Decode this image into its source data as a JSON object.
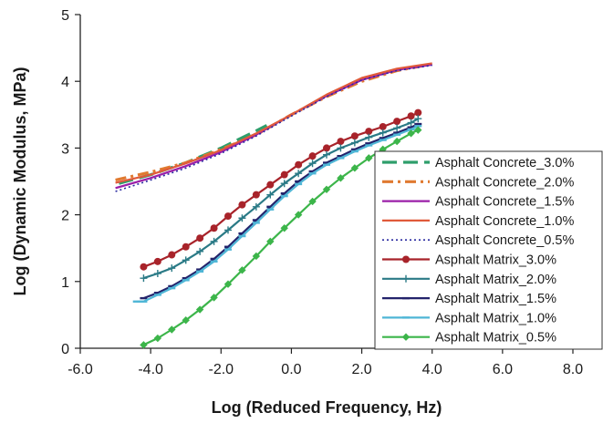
{
  "chart_data": {
    "type": "line",
    "title": "",
    "xlabel": "Log (Reduced Frequency, Hz)",
    "ylabel": "Log (Dynamic Modulus, MPa)",
    "xlim": [
      -6.0,
      8.0
    ],
    "ylim": [
      0,
      5
    ],
    "x_ticks": [
      -6.0,
      -4.0,
      -2.0,
      0.0,
      2.0,
      4.0,
      6.0,
      8.0
    ],
    "x_tick_labels": [
      "-6.0",
      "-4.0",
      "-2.0",
      "0.0",
      "2.0",
      "4.0",
      "6.0",
      "8.0"
    ],
    "y_ticks": [
      0,
      1,
      2,
      3,
      4,
      5
    ],
    "y_tick_labels": [
      "0",
      "1",
      "2",
      "3",
      "4",
      "5"
    ],
    "grid": false,
    "legend_position": "right",
    "series": [
      {
        "name": "Asphalt Concrete_3.0%",
        "color": "#2e9e6b",
        "style": "long-dash",
        "marker": "none",
        "x": [
          -4.9,
          -4.0,
          -3.0,
          -2.0,
          -1.0,
          -0.7
        ],
        "y": [
          2.47,
          2.6,
          2.78,
          3.0,
          3.26,
          3.34
        ]
      },
      {
        "name": "Asphalt Concrete_2.0%",
        "color": "#e07a30",
        "style": "dash-dot",
        "marker": "none",
        "x": [
          -5.0,
          -4.0,
          -3.0,
          -2.0,
          -1.0,
          0.0,
          1.0,
          2.0,
          3.0,
          4.0
        ],
        "y": [
          2.52,
          2.64,
          2.78,
          2.98,
          3.2,
          3.5,
          3.77,
          4.0,
          4.16,
          4.26
        ]
      },
      {
        "name": "Asphalt Concrete_1.5%",
        "color": "#9b1fa8",
        "style": "solid",
        "marker": "none",
        "x": [
          -5.0,
          -4.0,
          -3.0,
          -2.0,
          -1.0,
          0.0,
          1.0,
          2.0,
          3.0,
          4.0
        ],
        "y": [
          2.4,
          2.55,
          2.73,
          2.94,
          3.2,
          3.5,
          3.78,
          4.02,
          4.17,
          4.25
        ]
      },
      {
        "name": "Asphalt Concrete_1.0%",
        "color": "#e05a3a",
        "style": "solid",
        "marker": "none",
        "x": [
          -5.0,
          -4.0,
          -3.0,
          -2.0,
          -1.0,
          0.0,
          1.0,
          2.0,
          3.0,
          4.0
        ],
        "y": [
          2.48,
          2.6,
          2.77,
          2.97,
          3.22,
          3.5,
          3.8,
          4.05,
          4.19,
          4.27
        ]
      },
      {
        "name": "Asphalt Concrete_0.5%",
        "color": "#2a2aa0",
        "style": "dotted",
        "marker": "none",
        "x": [
          -5.0,
          -4.0,
          -3.0,
          -2.0,
          -1.0,
          0.0,
          1.0,
          2.0,
          3.0,
          4.0
        ],
        "y": [
          2.35,
          2.52,
          2.7,
          2.92,
          3.18,
          3.48,
          3.77,
          4.02,
          4.16,
          4.24
        ]
      },
      {
        "name": "Asphalt Matrix_3.0%",
        "color": "#a8232a",
        "style": "solid",
        "marker": "circle",
        "x": [
          -4.2,
          -3.8,
          -3.4,
          -3.0,
          -2.6,
          -2.2,
          -1.8,
          -1.4,
          -1.0,
          -0.6,
          -0.2,
          0.2,
          0.6,
          1.0,
          1.4,
          1.8,
          2.2,
          2.6,
          3.0,
          3.4,
          3.6
        ],
        "y": [
          1.22,
          1.3,
          1.4,
          1.52,
          1.65,
          1.8,
          1.98,
          2.15,
          2.3,
          2.45,
          2.6,
          2.75,
          2.88,
          3.0,
          3.1,
          3.18,
          3.25,
          3.32,
          3.4,
          3.48,
          3.53
        ]
      },
      {
        "name": "Asphalt Matrix_2.0%",
        "color": "#2a7a86",
        "style": "solid",
        "marker": "plus",
        "x": [
          -4.2,
          -3.8,
          -3.4,
          -3.0,
          -2.6,
          -2.2,
          -1.8,
          -1.4,
          -1.0,
          -0.6,
          -0.2,
          0.2,
          0.6,
          1.0,
          1.4,
          1.8,
          2.2,
          2.6,
          3.0,
          3.4,
          3.6
        ],
        "y": [
          1.05,
          1.12,
          1.2,
          1.32,
          1.45,
          1.6,
          1.77,
          1.95,
          2.12,
          2.3,
          2.47,
          2.62,
          2.77,
          2.9,
          3.0,
          3.08,
          3.16,
          3.23,
          3.3,
          3.38,
          3.44
        ]
      },
      {
        "name": "Asphalt Matrix_1.5%",
        "color": "#23236b",
        "style": "solid",
        "marker": "dash",
        "x": [
          -4.2,
          -3.8,
          -3.4,
          -3.0,
          -2.6,
          -2.2,
          -1.8,
          -1.4,
          -1.0,
          -0.6,
          -0.2,
          0.2,
          0.6,
          1.0,
          1.4,
          1.8,
          2.2,
          2.6,
          3.0,
          3.4,
          3.6
        ],
        "y": [
          0.75,
          0.83,
          0.93,
          1.05,
          1.18,
          1.34,
          1.52,
          1.72,
          1.92,
          2.12,
          2.32,
          2.5,
          2.65,
          2.78,
          2.88,
          2.98,
          3.07,
          3.15,
          3.23,
          3.31,
          3.36
        ]
      },
      {
        "name": "Asphalt Matrix_1.0%",
        "color": "#4fb6d6",
        "style": "solid",
        "marker": "dash",
        "x": [
          -4.4,
          -4.2,
          -3.8,
          -3.4,
          -3.0,
          -2.6,
          -2.2,
          -1.8,
          -1.4,
          -1.0,
          -0.6,
          -0.2,
          0.2,
          0.6,
          1.0,
          1.4,
          1.8,
          2.2,
          2.6,
          3.0,
          3.4,
          3.6
        ],
        "y": [
          0.7,
          0.7,
          0.8,
          0.9,
          1.02,
          1.15,
          1.3,
          1.48,
          1.68,
          1.88,
          2.08,
          2.28,
          2.46,
          2.62,
          2.75,
          2.85,
          2.95,
          3.04,
          3.12,
          3.2,
          3.28,
          3.33
        ]
      },
      {
        "name": "Asphalt Matrix_0.5%",
        "color": "#3cb54a",
        "style": "solid",
        "marker": "diamond",
        "x": [
          -4.2,
          -3.8,
          -3.4,
          -3.0,
          -2.6,
          -2.2,
          -1.8,
          -1.4,
          -1.0,
          -0.6,
          -0.2,
          0.2,
          0.6,
          1.0,
          1.4,
          1.8,
          2.2,
          2.6,
          3.0,
          3.4,
          3.6
        ],
        "y": [
          0.05,
          0.15,
          0.28,
          0.42,
          0.58,
          0.76,
          0.96,
          1.17,
          1.38,
          1.6,
          1.8,
          2.0,
          2.2,
          2.38,
          2.55,
          2.7,
          2.85,
          2.98,
          3.1,
          3.22,
          3.27
        ]
      }
    ]
  }
}
